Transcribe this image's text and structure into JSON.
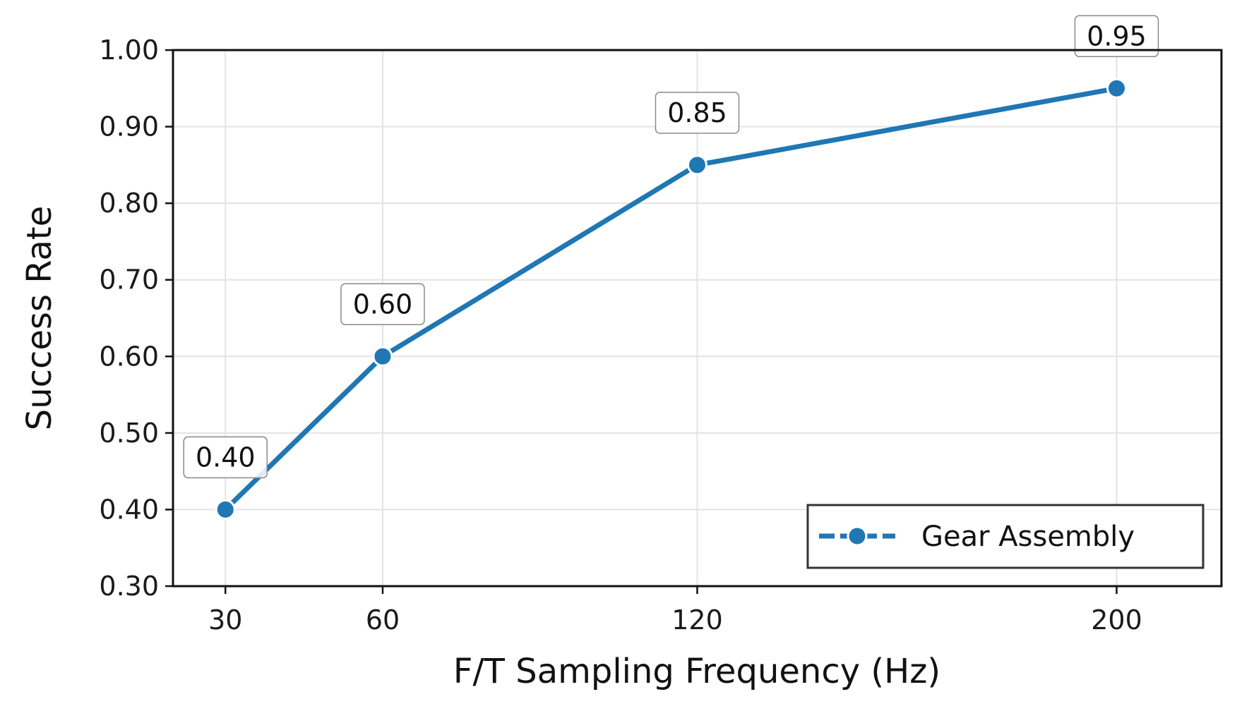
{
  "chart_data": {
    "type": "line",
    "x": [
      30,
      60,
      120,
      200
    ],
    "series": [
      {
        "name": "Gear Assembly",
        "values": [
          0.4,
          0.6,
          0.85,
          0.95
        ],
        "color": "#1f77b4",
        "marker": "circle"
      }
    ],
    "data_labels": [
      "0.40",
      "0.60",
      "0.85",
      "0.95"
    ],
    "xlabel": "F/T Sampling Frequency (Hz)",
    "ylabel": "Success Rate",
    "xticks": [
      30,
      60,
      120,
      200
    ],
    "xtick_labels": [
      "30",
      "60",
      "120",
      "200"
    ],
    "xlim": [
      20,
      220
    ],
    "yticks": [
      0.3,
      0.4,
      0.5,
      0.6,
      0.7,
      0.8,
      0.9,
      1.0
    ],
    "ytick_labels": [
      "0.30",
      "0.40",
      "0.50",
      "0.60",
      "0.70",
      "0.80",
      "0.90",
      "1.00"
    ],
    "ylim": [
      0.3,
      1.0
    ],
    "grid": true,
    "legend_position": "lower-right"
  }
}
